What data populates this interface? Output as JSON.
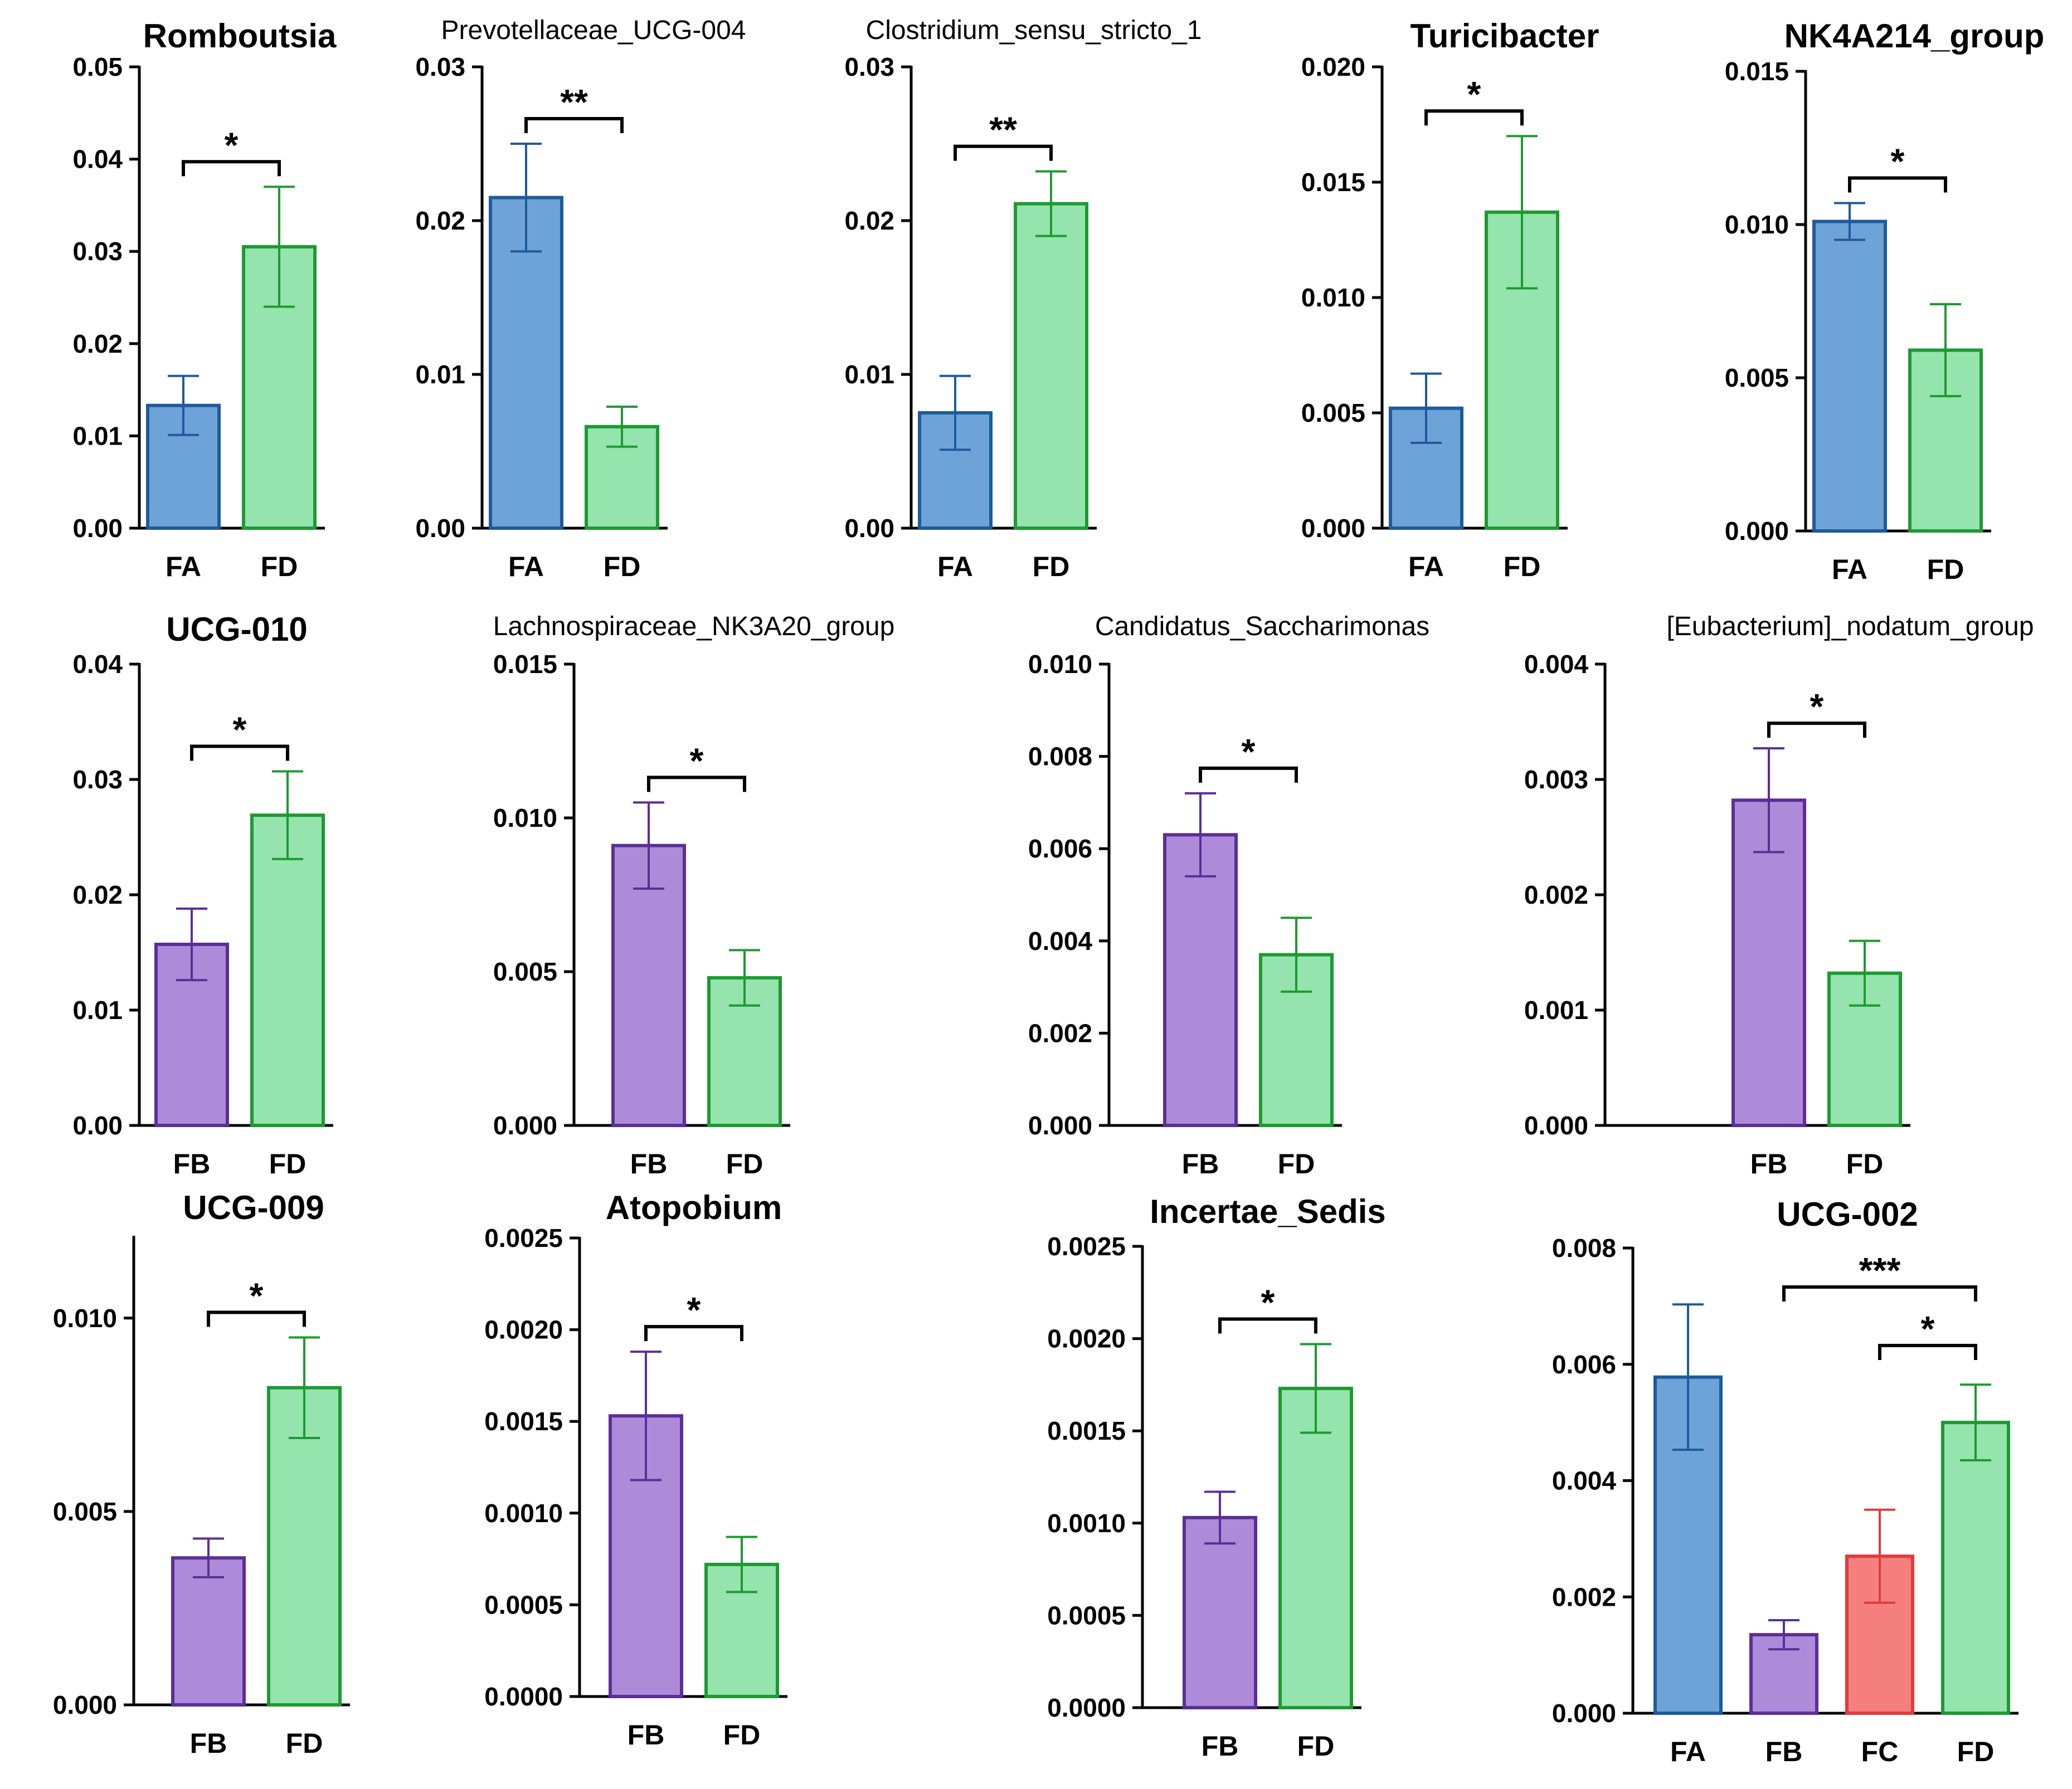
{
  "figure": {
    "description_free": true
  },
  "colors": {
    "FA": {
      "fill": "#6EA3D7",
      "stroke": "#1E5A9C"
    },
    "FB": {
      "fill": "#AD8BD8",
      "stroke": "#5B2E98"
    },
    "FC": {
      "fill": "#F57F7F",
      "stroke": "#E23A3A"
    },
    "FD": {
      "fill": "#95E3AD",
      "stroke": "#1D9A32"
    },
    "axis": "#000000"
  },
  "chart_data": [
    {
      "type": "bar",
      "title": "Romboutsia",
      "title_bold": true,
      "categories": [
        "FA",
        "FD"
      ],
      "values": [
        0.0133,
        0.0305
      ],
      "errors": [
        0.0032,
        0.0065
      ],
      "ylim": [
        0,
        0.05
      ],
      "yticks": [
        "0.00",
        "0.01",
        "0.02",
        "0.03",
        "0.04",
        "0.05"
      ],
      "significance": [
        {
          "from": 0,
          "to": 1,
          "label": "*"
        }
      ]
    },
    {
      "type": "bar",
      "title": "Prevotellaceae_UCG-004",
      "title_bold": false,
      "categories": [
        "FA",
        "FD"
      ],
      "values": [
        0.0215,
        0.0066
      ],
      "errors": [
        0.0035,
        0.0013
      ],
      "ylim": [
        0,
        0.03
      ],
      "yticks": [
        "0.00",
        "0.01",
        "0.02",
        "0.03"
      ],
      "significance": [
        {
          "from": 0,
          "to": 1,
          "label": "**"
        }
      ]
    },
    {
      "type": "bar",
      "title": "Clostridium_sensu_stricto_1",
      "title_bold": false,
      "categories": [
        "FA",
        "FD"
      ],
      "values": [
        0.0075,
        0.0211
      ],
      "errors": [
        0.0024,
        0.0021
      ],
      "ylim": [
        0,
        0.03
      ],
      "yticks": [
        "0.00",
        "0.01",
        "0.02",
        "0.03"
      ],
      "significance": [
        {
          "from": 0,
          "to": 1,
          "label": "**"
        }
      ]
    },
    {
      "type": "bar",
      "title": "Turicibacter",
      "title_bold": true,
      "categories": [
        "FA",
        "FD"
      ],
      "values": [
        0.0052,
        0.0137
      ],
      "errors": [
        0.0015,
        0.0033
      ],
      "ylim": [
        0,
        0.02
      ],
      "yticks": [
        "0.000",
        "0.005",
        "0.010",
        "0.015",
        "0.020"
      ],
      "significance": [
        {
          "from": 0,
          "to": 1,
          "label": "*"
        }
      ]
    },
    {
      "type": "bar",
      "title": "NK4A214_group",
      "title_bold": true,
      "categories": [
        "FA",
        "FD"
      ],
      "values": [
        0.0101,
        0.0059
      ],
      "errors": [
        0.0006,
        0.0015
      ],
      "ylim": [
        0,
        0.015
      ],
      "yticks": [
        "0.000",
        "0.005",
        "0.010",
        "0.015"
      ],
      "significance": [
        {
          "from": 0,
          "to": 1,
          "label": "*"
        }
      ]
    },
    {
      "type": "bar",
      "title": "UCG-010",
      "title_bold": true,
      "categories": [
        "FB",
        "FD"
      ],
      "values": [
        0.0157,
        0.0269
      ],
      "errors": [
        0.0031,
        0.0038
      ],
      "ylim": [
        0,
        0.04
      ],
      "yticks": [
        "0.00",
        "0.01",
        "0.02",
        "0.03",
        "0.04"
      ],
      "significance": [
        {
          "from": 0,
          "to": 1,
          "label": "*"
        }
      ]
    },
    {
      "type": "bar",
      "title": "Lachnospiraceae_NK3A20_group",
      "title_bold": false,
      "categories": [
        "FB",
        "FD"
      ],
      "values": [
        0.0091,
        0.0048
      ],
      "errors": [
        0.0014,
        0.0009
      ],
      "ylim": [
        0,
        0.015
      ],
      "yticks": [
        "0.000",
        "0.005",
        "0.010",
        "0.015"
      ],
      "significance": [
        {
          "from": 0,
          "to": 1,
          "label": "*"
        }
      ]
    },
    {
      "type": "bar",
      "title": "Candidatus_Saccharimonas",
      "title_bold": false,
      "categories": [
        "FB",
        "FD"
      ],
      "values": [
        0.0063,
        0.0037
      ],
      "errors": [
        0.0009,
        0.0008
      ],
      "ylim": [
        0,
        0.01
      ],
      "yticks": [
        "0.000",
        "0.002",
        "0.004",
        "0.006",
        "0.008",
        "0.010"
      ],
      "significance": [
        {
          "from": 0,
          "to": 1,
          "label": "*"
        }
      ]
    },
    {
      "type": "bar",
      "title": "[Eubacterium]_nodatum_group",
      "title_bold": false,
      "categories": [
        "FB",
        "FD"
      ],
      "values": [
        0.00282,
        0.00132
      ],
      "errors": [
        0.00045,
        0.00028
      ],
      "ylim": [
        0,
        0.004
      ],
      "yticks": [
        "0.000",
        "0.001",
        "0.002",
        "0.003",
        "0.004"
      ],
      "significance": [
        {
          "from": 0,
          "to": 1,
          "label": "*"
        }
      ]
    },
    {
      "type": "bar",
      "title": "UCG-009",
      "title_bold": true,
      "categories": [
        "FB",
        "FD"
      ],
      "values": [
        0.0038,
        0.0082
      ],
      "errors": [
        0.0005,
        0.0013
      ],
      "ylim": [
        0,
        0.0121
      ],
      "yticks": [
        "0.000",
        "0.005",
        "0.010"
      ],
      "ytick_values": [
        0,
        0.005,
        0.01
      ],
      "significance": [
        {
          "from": 0,
          "to": 1,
          "label": "*"
        }
      ]
    },
    {
      "type": "bar",
      "title": "Atopobium",
      "title_bold": true,
      "categories": [
        "FB",
        "FD"
      ],
      "values": [
        0.00153,
        0.00072
      ],
      "errors": [
        0.00035,
        0.00015
      ],
      "ylim": [
        0,
        0.0025
      ],
      "yticks": [
        "0.0000",
        "0.0005",
        "0.0010",
        "0.0015",
        "0.0020",
        "0.0025"
      ],
      "significance": [
        {
          "from": 0,
          "to": 1,
          "label": "*"
        }
      ]
    },
    {
      "type": "bar",
      "title": "Incertae_Sedis",
      "title_bold": true,
      "categories": [
        "FB",
        "FD"
      ],
      "values": [
        0.00103,
        0.00173
      ],
      "errors": [
        0.00014,
        0.00024
      ],
      "ylim": [
        0,
        0.0025
      ],
      "yticks": [
        "0.0000",
        "0.0005",
        "0.0010",
        "0.0015",
        "0.0020",
        "0.0025"
      ],
      "significance": [
        {
          "from": 0,
          "to": 1,
          "label": "*"
        }
      ]
    },
    {
      "type": "bar",
      "title": "UCG-002",
      "title_bold": true,
      "categories": [
        "FA",
        "FB",
        "FC",
        "FD"
      ],
      "values": [
        0.00578,
        0.00135,
        0.0027,
        0.005
      ],
      "errors": [
        0.00125,
        0.00025,
        0.0008,
        0.00065
      ],
      "ylim": [
        0,
        0.008
      ],
      "yticks": [
        "0.000",
        "0.002",
        "0.004",
        "0.006",
        "0.008"
      ],
      "significance": [
        {
          "from": 1,
          "to": 3,
          "label": "***"
        },
        {
          "from": 2,
          "to": 3,
          "label": "*"
        }
      ]
    }
  ]
}
